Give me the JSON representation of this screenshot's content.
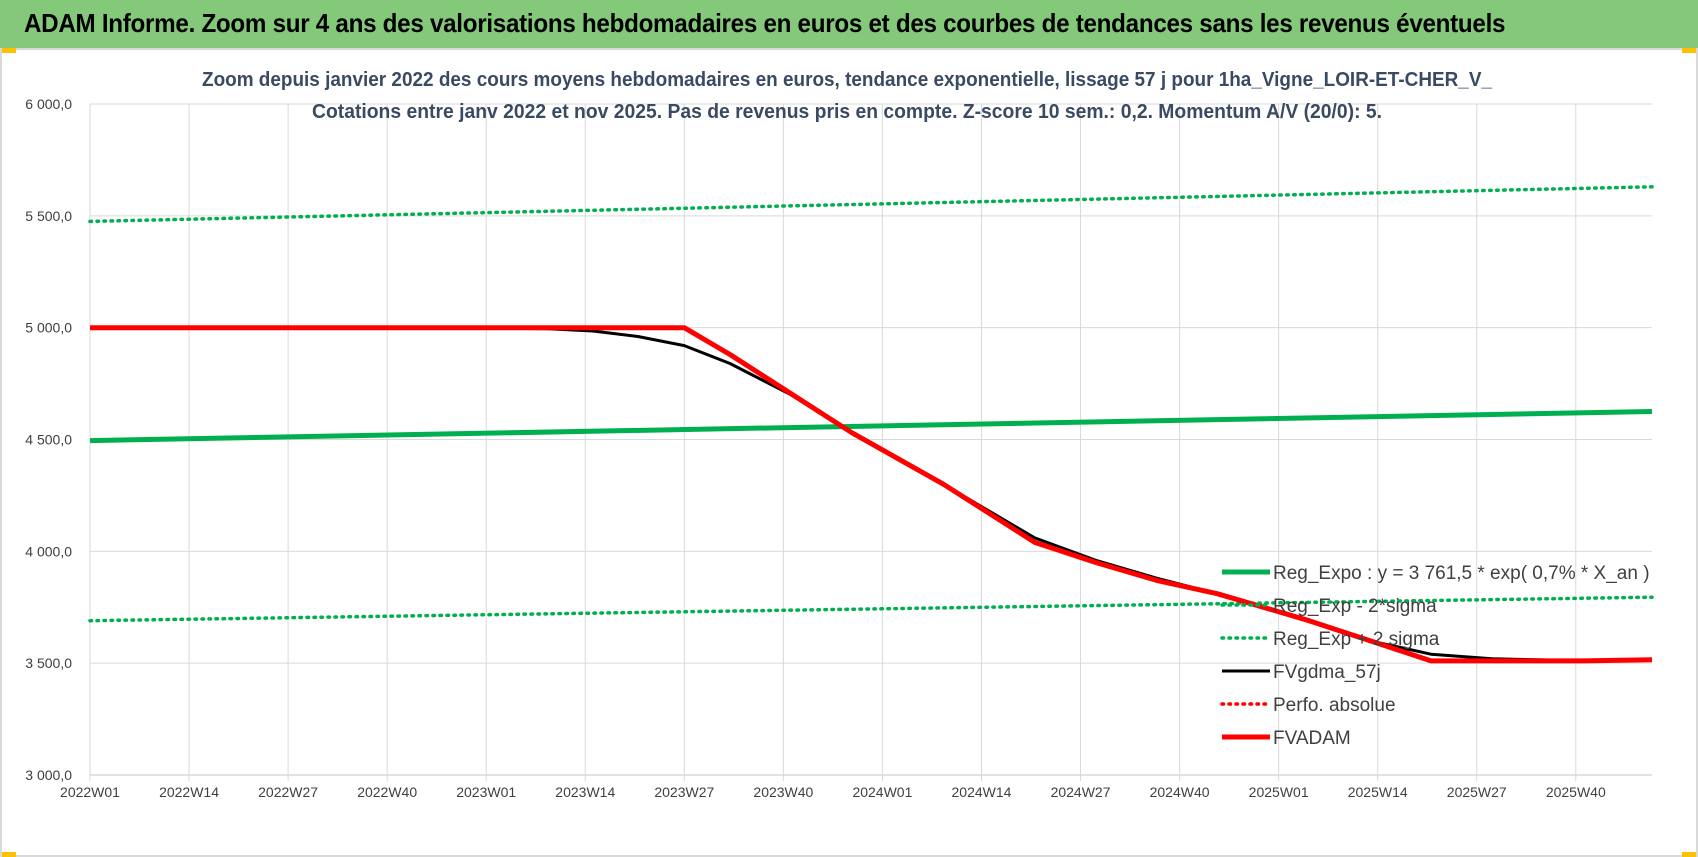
{
  "banner": {
    "title": "ADAM Informe. Zoom sur 4 ans des valorisations hebdomadaires en euros et des courbes de tendances sans les revenus éventuels"
  },
  "colors": {
    "banner_bg": "#84c879",
    "reg_expo": "#00b050",
    "fvgdma": "#000000",
    "fvadam": "#ff0000",
    "grid": "#d9d9d9",
    "text": "#404040",
    "title": "#3b4a63"
  },
  "chart_data": {
    "type": "line",
    "title_line1": "Zoom depuis janvier 2022 des cours moyens hebdomadaires en euros, tendance exponentielle, lissage 57 j pour 1ha_Vigne_LOIR-ET-CHER_V_",
    "title_line2": "Cotations entre janv 2022 et nov 2025. Pas de revenus pris en compte. Z-score 10 sem.: 0,2. Momentum A/V (20/0): 5.",
    "x_tick_labels": [
      "2022W01",
      "2022W14",
      "2022W27",
      "2022W40",
      "2023W01",
      "2023W14",
      "2023W27",
      "2023W40",
      "2024W01",
      "2024W14",
      "2024W27",
      "2024W40",
      "2025W01",
      "2025W14",
      "2025W27",
      "2025W40"
    ],
    "x_range_weeks": [
      0,
      205
    ],
    "y_tick_labels": [
      "3 000,0",
      "3 500,0",
      "4 000,0",
      "4 500,0",
      "5 000,0",
      "5 500,0",
      "6 000,0"
    ],
    "ylim": [
      3000,
      6000
    ],
    "series": [
      {
        "name": "Reg_Expo : y = 3 761,5 * exp( 0,7% *  X_an )",
        "style": "solid-thick",
        "color": "#00b050",
        "x": [
          0,
          205
        ],
        "y": [
          4495,
          4625
        ]
      },
      {
        "name": "Reg_Exp - 2*sigma",
        "style": "dotted",
        "color": "#00b050",
        "x": [
          0,
          205
        ],
        "y": [
          3690,
          3795
        ]
      },
      {
        "name": "Reg_Exp + 2 sigma",
        "style": "dotted",
        "color": "#00b050",
        "x": [
          0,
          205
        ],
        "y": [
          5475,
          5630
        ]
      },
      {
        "name": "FVgdma_57j",
        "style": "solid",
        "color": "#000000",
        "x": [
          0,
          48,
          60,
          66,
          72,
          78,
          84,
          92,
          100,
          112,
          118,
          124,
          132,
          140,
          148,
          160,
          168,
          176,
          184,
          190,
          196,
          205
        ],
        "y": [
          5000,
          5000,
          4995,
          4985,
          4960,
          4920,
          4840,
          4700,
          4530,
          4300,
          4180,
          4060,
          3960,
          3880,
          3810,
          3690,
          3600,
          3540,
          3520,
          3515,
          3510,
          3515
        ]
      },
      {
        "name": "Perfo. absolue",
        "style": "dotted",
        "color": "#ff0000",
        "x": [],
        "y": []
      },
      {
        "name": "FVADAM",
        "style": "solid-thick",
        "color": "#ff0000",
        "x": [
          0,
          78,
          84,
          100,
          112,
          118,
          124,
          132,
          140,
          148,
          160,
          168,
          176,
          184,
          196,
          205
        ],
        "y": [
          5000,
          5000,
          4880,
          4530,
          4300,
          4170,
          4040,
          3950,
          3870,
          3810,
          3690,
          3600,
          3510,
          3510,
          3510,
          3515
        ]
      }
    ],
    "legend_position": "bottom-right"
  }
}
